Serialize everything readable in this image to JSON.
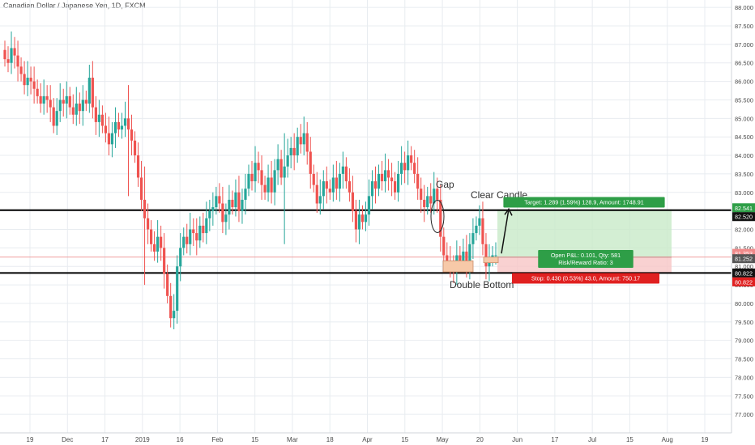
{
  "chart_data": {
    "type": "candlestick",
    "title": "Canadian Dollar / Japanese Yen, 1D, FXCM",
    "ylim": [
      76.5,
      88.2
    ],
    "y_ticks": [
      "77.000",
      "77.500",
      "78.000",
      "78.500",
      "79.000",
      "79.500",
      "80.000",
      "80.500",
      "81.000",
      "81.500",
      "82.000",
      "82.500",
      "83.000",
      "83.500",
      "84.000",
      "84.500",
      "85.000",
      "85.500",
      "86.000",
      "86.500",
      "87.000",
      "87.500",
      "88.000"
    ],
    "x_ticks": [
      "19",
      "Dec",
      "17",
      "2019",
      "16",
      "Feb",
      "15",
      "Mar",
      "18",
      "Apr",
      "15",
      "May",
      "20",
      "Jun",
      "17",
      "Jul",
      "15",
      "Aug",
      "19"
    ],
    "close_series": [
      86.6,
      86.5,
      86.9,
      86.7,
      86.4,
      86.2,
      85.9,
      86.1,
      86.0,
      85.8,
      85.6,
      85.4,
      85.6,
      85.5,
      85.3,
      84.8,
      85.2,
      85.5,
      85.4,
      85.6,
      85.3,
      85.1,
      85.4,
      85.2,
      85.5,
      85.4,
      86.1,
      85.3,
      84.9,
      85.1,
      84.8,
      84.6,
      84.3,
      84.6,
      84.9,
      84.7,
      84.8,
      85.0,
      84.7,
      84.4,
      84.0,
      83.4,
      82.8,
      82.3,
      82.0,
      81.6,
      81.4,
      81.8,
      81.5,
      80.8,
      80.2,
      79.6,
      79.8,
      81.0,
      81.5,
      81.8,
      81.6,
      82.0,
      81.9,
      81.7,
      82.1,
      81.9,
      82.3,
      82.5,
      82.6,
      82.9,
      82.7,
      82.2,
      82.4,
      82.8,
      82.6,
      83.0,
      82.5,
      82.8,
      83.1,
      83.5,
      83.3,
      83.8,
      83.6,
      83.2,
      83.0,
      83.4,
      83.0,
      83.6,
      83.9,
      83.4,
      83.7,
      84.0,
      84.2,
      84.0,
      84.5,
      84.3,
      84.6,
      84.1,
      83.5,
      83.2,
      82.7,
      82.9,
      83.3,
      83.1,
      83.0,
      83.4,
      83.1,
      83.5,
      83.7,
      83.3,
      83.0,
      82.5,
      82.0,
      82.4,
      82.2,
      82.4,
      82.9,
      83.3,
      83.1,
      83.5,
      83.3,
      83.6,
      83.4,
      83.3,
      83.0,
      83.5,
      83.8,
      83.6,
      84.0,
      83.8,
      83.5,
      83.1,
      82.8,
      82.6,
      82.9,
      82.7,
      83.1,
      82.8,
      81.8,
      81.3,
      81.1,
      81.0,
      80.9,
      81.3,
      81.1,
      81.4,
      81.0,
      81.6,
      81.9,
      82.1,
      82.3,
      81.6,
      81.0,
      81.2,
      81.3,
      81.3
    ],
    "highlight_bars": [
      38,
      43,
      86
    ],
    "levels": [
      {
        "name": "resistance",
        "value": 82.52,
        "color": "#000000"
      },
      {
        "name": "support",
        "value": 80.822,
        "color": "#000000"
      },
      {
        "name": "entry",
        "value": 81.252,
        "color": "#f0a0a0"
      }
    ],
    "position": {
      "target_value": 82.541,
      "entry_value": 81.252,
      "stop_value": 80.822,
      "target_label": "Target: 1.289 (1.59%) 128.9, Amount: 1748.91",
      "pnl_label": "Open P&L: 0.101, Qty: 581",
      "rr_label": "Risk/Reward Ratio: 3",
      "stop_label": "Stop: 0.430 (0.53%) 43.0, Amount: 750.17"
    },
    "price_tags": [
      {
        "label": "82.541",
        "value": 82.541,
        "bg": "#2e9e47",
        "fg": "#ffffff"
      },
      {
        "label": "82.520",
        "value": 82.52,
        "bg": "#111111",
        "fg": "#ffffff"
      },
      {
        "label": "81.353",
        "value": 81.353,
        "bg": "#f08a8a",
        "fg": "#ffffff"
      },
      {
        "label": "81.252",
        "value": 81.252,
        "bg": "#555555",
        "fg": "#ffffff"
      },
      {
        "label": "80.822",
        "value": 80.822,
        "bg": "#111111",
        "fg": "#ffffff"
      },
      {
        "label": "80.822",
        "value": 80.822,
        "bg": "#e02020",
        "fg": "#ffffff",
        "below": true
      }
    ],
    "annotations": {
      "gap": "Gap",
      "clear_candle": "Clear Candle",
      "double_bottom": "Double Bottom"
    },
    "colors": {
      "up": "#26a69a",
      "down": "#ef5350",
      "grid": "#e8ecf0",
      "axis_text": "#4a4a4a",
      "target_zone": "#c8eac8",
      "stop_zone": "#f8c6c6",
      "bottom_box": "#f7c9a8"
    }
  }
}
